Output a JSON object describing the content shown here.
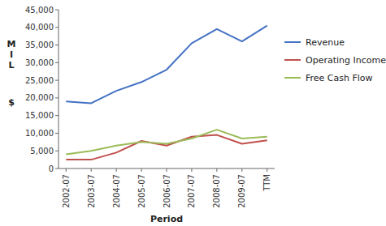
{
  "chart_data": {
    "type": "line",
    "categories": [
      "2002-07",
      "2003-07",
      "2004-07",
      "2005-07",
      "2006-07",
      "2007-07",
      "2008-07",
      "2009-07",
      "TTM"
    ],
    "series": [
      {
        "name": "Revenue",
        "color": "#4472C4",
        "values": [
          19000,
          18500,
          22000,
          24500,
          28000,
          35500,
          39500,
          36000,
          40500
        ]
      },
      {
        "name": "Operating Income",
        "color": "#C0504D",
        "values": [
          2500,
          2500,
          4500,
          7800,
          6500,
          9000,
          9500,
          7000,
          8000
        ]
      },
      {
        "name": "Free Cash Flow",
        "color": "#9BBB59",
        "values": [
          4000,
          5000,
          6500,
          7500,
          7000,
          8500,
          11000,
          8500,
          9000
        ]
      }
    ],
    "ylim": [
      0,
      45000
    ],
    "yticks": [
      0,
      {
        "value": 5000,
        "label": "5,000"
      },
      {
        "value": 10000,
        "label": "10,000"
      },
      {
        "value": 15000,
        "label": "15,000"
      },
      {
        "value": 20000,
        "label": "20,000"
      },
      {
        "value": 25000,
        "label": "25,000"
      },
      {
        "value": 30000,
        "label": "30,000"
      },
      {
        "value": 35000,
        "label": "35,000"
      },
      {
        "value": 40000,
        "label": "40,000"
      },
      {
        "value": 45000,
        "label": "45,000"
      }
    ],
    "xlabel": "Period",
    "ylabel": [
      "M\nI\nL",
      "$"
    ],
    "grid": false,
    "legend": "right"
  }
}
